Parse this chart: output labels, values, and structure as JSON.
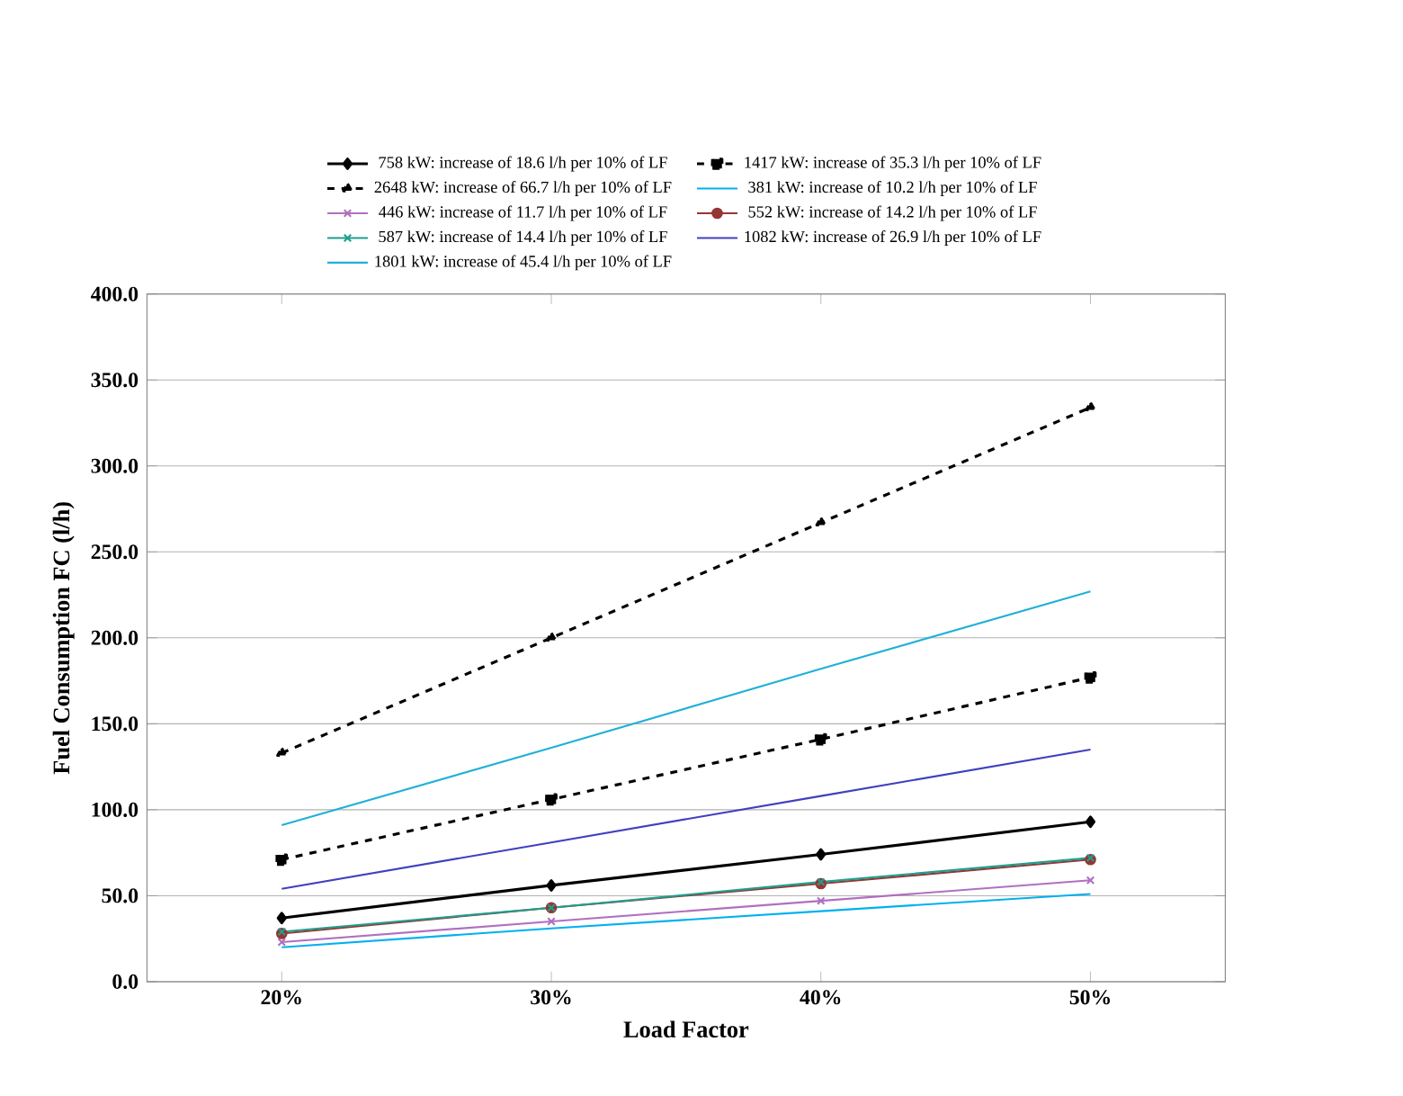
{
  "chart_data": {
    "type": "line",
    "xlabel": "Load Factor",
    "ylabel": "Fuel Consumption FC (l/h)",
    "categories": [
      "20%",
      "30%",
      "40%",
      "50%"
    ],
    "ylim": [
      0,
      400
    ],
    "yticks": [
      {
        "value": 0,
        "label": "0.0"
      },
      {
        "value": 50,
        "label": "50.0"
      },
      {
        "value": 100,
        "label": "100.0"
      },
      {
        "value": 150,
        "label": "150.0"
      },
      {
        "value": 200,
        "label": "200.0"
      },
      {
        "value": 250,
        "label": "250.0"
      },
      {
        "value": 300,
        "label": "300.0"
      },
      {
        "value": 350,
        "label": "350.0"
      },
      {
        "value": 400,
        "label": "400.0"
      }
    ],
    "grid": "y",
    "legend": "top",
    "series": [
      {
        "name": "758 kW: increase of 18.6 l/h per 10% of LF",
        "color": "#000000",
        "marker": "diamond",
        "line_style": "solid",
        "values": [
          37,
          56,
          74,
          93
        ]
      },
      {
        "name": "1417 kW: increase of 35.3 l/h per 10% of LF",
        "color": "#000000",
        "marker": "square",
        "line_style": "dashed",
        "values": [
          71,
          106,
          141,
          177
        ]
      },
      {
        "name": "2648 kW: increase of 66.7 l/h per 10% of LF",
        "color": "#000000",
        "marker": "triangle",
        "line_style": "dashed",
        "values": [
          133,
          200,
          267,
          334
        ]
      },
      {
        "name": "381 kW: increase of 10.2 l/h per 10% of LF",
        "color": "#00b0f0",
        "marker": "none",
        "line_style": "solid",
        "values": [
          20,
          31,
          41,
          51
        ]
      },
      {
        "name": "446 kW: increase of 11.7 l/h per 10% of LF",
        "color": "#b070c0",
        "marker": "cross",
        "line_style": "solid",
        "values": [
          23,
          35,
          47,
          59
        ]
      },
      {
        "name": "552 kW: increase of 14.2 l/h per 10% of LF",
        "color": "#953735",
        "marker": "circle",
        "line_style": "solid",
        "values": [
          28,
          43,
          57,
          71
        ]
      },
      {
        "name": "587 kW: increase of 14.4 l/h per 10% of LF",
        "color": "#1f9e8e",
        "marker": "cross",
        "line_style": "solid",
        "values": [
          29,
          43,
          58,
          72
        ]
      },
      {
        "name": "1082 kW: increase of 26.9 l/h per 10% of LF",
        "color": "#4040c0",
        "marker": "none",
        "line_style": "solid",
        "values": [
          54,
          81,
          108,
          135
        ]
      },
      {
        "name": "1801 kW: increase of 45.4 l/h per 10% of LF",
        "color": "#20b0d8",
        "marker": "none",
        "line_style": "solid",
        "values": [
          91,
          136,
          182,
          227
        ]
      }
    ]
  }
}
